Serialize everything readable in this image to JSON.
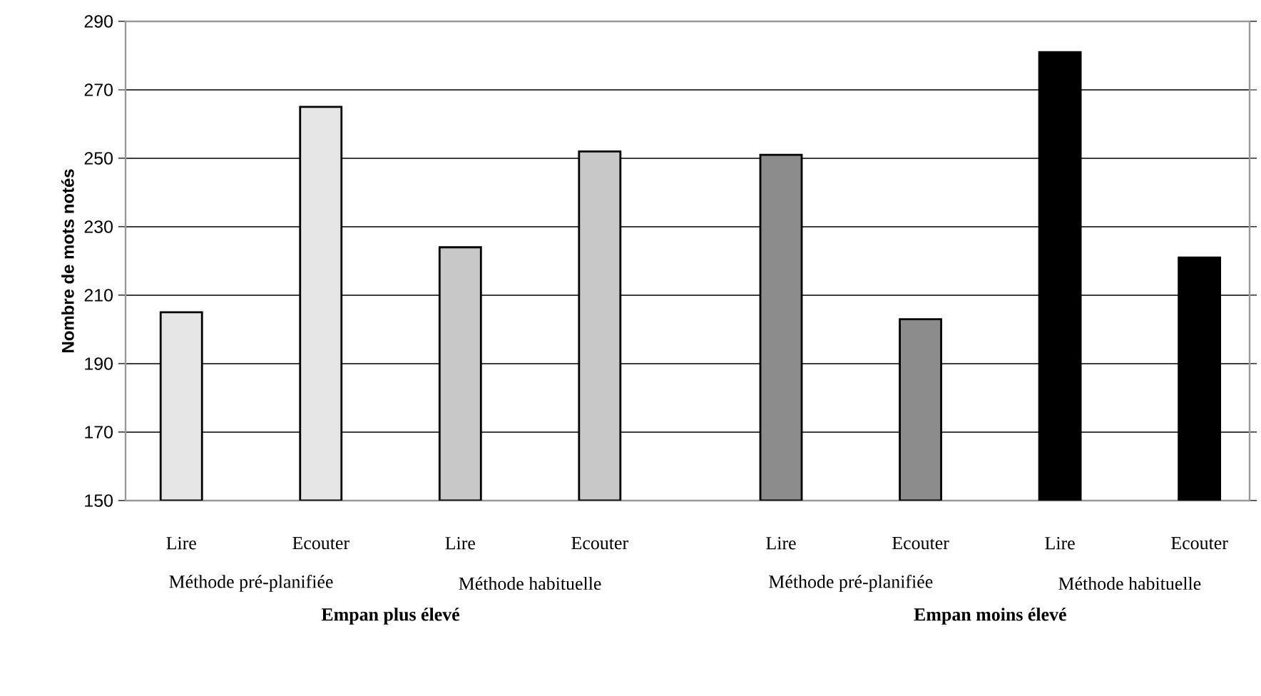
{
  "chart_data": {
    "type": "bar",
    "ylabel": "Nombre de mots notés",
    "categories": [
      "Lire",
      "Ecouter",
      "Lire",
      "Ecouter",
      "Lire",
      "Ecouter",
      "Lire",
      "Ecouter"
    ],
    "values": [
      205,
      265,
      224,
      252,
      251,
      203,
      281,
      221
    ],
    "colors": [
      "#e6e6e6",
      "#e6e6e6",
      "#c8c8c8",
      "#c8c8c8",
      "#8c8c8c",
      "#8c8c8c",
      "#000000",
      "#000000"
    ],
    "ylim": [
      150,
      290
    ],
    "yticks": [
      150,
      170,
      190,
      210,
      230,
      250,
      270,
      290
    ],
    "grid": "y",
    "annotations": [
      "Méthode pré-planifiée",
      "Méthode habituelle",
      "Méthode pré-planifiée",
      "Méthode habituelle",
      "Empan plus élevé",
      "Empan moins élevé"
    ]
  }
}
